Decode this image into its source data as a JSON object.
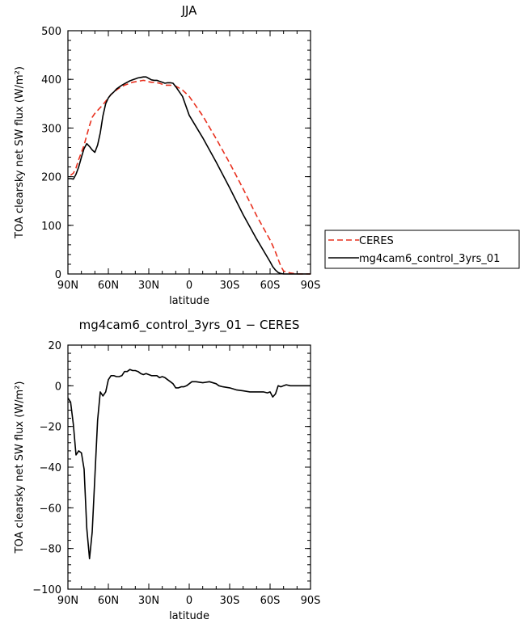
{
  "chart_data": [
    {
      "type": "line",
      "title": "JJA",
      "xlabel": "latitude",
      "ylabel": "TOA clearsky net SW flux (W/m²)",
      "xlim": [
        90,
        -90
      ],
      "ylim": [
        0,
        500
      ],
      "x_ticks": [
        90,
        60,
        30,
        0,
        -30,
        -60,
        -90
      ],
      "x_tick_labels": [
        "90N",
        "60N",
        "30N",
        "0",
        "30S",
        "60S",
        "90S"
      ],
      "y_ticks": [
        0,
        100,
        200,
        300,
        400,
        500
      ],
      "y_tick_labels": [
        "0",
        "100",
        "200",
        "300",
        "400",
        "500"
      ],
      "grid": false,
      "legend_position": "outside-right",
      "series": [
        {
          "name": "CERES",
          "color": "#e8301e",
          "dash": "dashed",
          "x": [
            88,
            86,
            84,
            82,
            80,
            78,
            76,
            74,
            72,
            70,
            68,
            66,
            64,
            62,
            60,
            58,
            56,
            54,
            52,
            50,
            48,
            46,
            44,
            42,
            40,
            38,
            36,
            34,
            32,
            30,
            28,
            26,
            24,
            22,
            20,
            18,
            16,
            14,
            12,
            10,
            5,
            0,
            -10,
            -20,
            -30,
            -40,
            -50,
            -60,
            -62,
            -64,
            -66,
            -68,
            -70,
            -75,
            -80,
            -90
          ],
          "y": [
            203,
            207,
            218,
            235,
            250,
            265,
            285,
            305,
            322,
            330,
            336,
            342,
            348,
            355,
            362,
            369,
            374,
            378,
            382,
            385,
            388,
            390,
            392,
            394,
            395,
            396,
            397,
            398,
            397,
            395,
            394,
            394,
            393,
            392,
            390,
            388,
            388,
            388,
            387,
            386,
            378,
            365,
            325,
            278,
            228,
            175,
            120,
            70,
            58,
            45,
            30,
            16,
            6,
            2,
            0,
            0
          ]
        },
        {
          "name": "mg4cam6_control_3yrs_01",
          "color": "#000000",
          "dash": "solid",
          "x": [
            90,
            88,
            86,
            84,
            82,
            80,
            78,
            76,
            74,
            72,
            70,
            68,
            66,
            64,
            62,
            60,
            58,
            56,
            54,
            52,
            50,
            48,
            46,
            44,
            42,
            40,
            38,
            36,
            34,
            32,
            30,
            28,
            26,
            24,
            22,
            20,
            18,
            16,
            14,
            12,
            10,
            5,
            0,
            -10,
            -20,
            -30,
            -40,
            -50,
            -60,
            -62,
            -64,
            -66,
            -68,
            -70,
            -75,
            -80,
            -90
          ],
          "y": [
            196,
            196,
            195,
            205,
            220,
            240,
            258,
            268,
            262,
            255,
            250,
            265,
            290,
            325,
            350,
            362,
            369,
            374,
            380,
            384,
            388,
            391,
            394,
            397,
            399,
            401,
            403,
            404,
            405,
            405,
            402,
            399,
            398,
            398,
            396,
            394,
            392,
            393,
            393,
            392,
            385,
            365,
            326,
            280,
            230,
            177,
            122,
            72,
            25,
            15,
            8,
            3,
            1,
            0,
            0,
            0,
            0
          ]
        }
      ]
    },
    {
      "type": "line",
      "title": "mg4cam6_control_3yrs_01 − CERES",
      "xlabel": "latitude",
      "ylabel": "TOA clearsky net SW flux (W/m²)",
      "xlim": [
        90,
        -90
      ],
      "ylim": [
        -100,
        20
      ],
      "x_ticks": [
        90,
        60,
        30,
        0,
        -30,
        -60,
        -90
      ],
      "x_tick_labels": [
        "90N",
        "60N",
        "30N",
        "0",
        "30S",
        "60S",
        "90S"
      ],
      "y_ticks": [
        -100,
        -80,
        -60,
        -40,
        -20,
        0,
        20
      ],
      "y_tick_labels": [
        "−100",
        "−80",
        "−60",
        "−40",
        "−20",
        "0",
        "20"
      ],
      "grid": false,
      "series": [
        {
          "color": "#000000",
          "dash": "solid",
          "x": [
            90,
            88,
            86,
            84,
            82,
            80,
            78,
            76,
            74,
            72,
            70,
            68,
            66,
            64,
            62,
            60,
            58,
            56,
            54,
            52,
            50,
            48,
            46,
            44,
            42,
            40,
            38,
            36,
            34,
            32,
            30,
            28,
            26,
            24,
            22,
            20,
            18,
            16,
            14,
            12,
            10,
            8,
            6,
            4,
            2,
            0,
            -2,
            -5,
            -10,
            -15,
            -20,
            -22,
            -25,
            -30,
            -35,
            -40,
            -45,
            -50,
            -55,
            -58,
            -60,
            -62,
            -64,
            -66,
            -68,
            -70,
            -72,
            -75,
            -80,
            -85,
            -90
          ],
          "y": [
            -6,
            -8,
            -19,
            -34,
            -32,
            -33,
            -41,
            -70,
            -85,
            -72,
            -45,
            -17,
            -3,
            -5,
            -3,
            3,
            5,
            5,
            4.5,
            4.5,
            5,
            7,
            7,
            8,
            7.5,
            7.5,
            7,
            6,
            5.5,
            6,
            5.5,
            5,
            5,
            5,
            4,
            4.5,
            4,
            3,
            2,
            1,
            -1,
            -1,
            -0.5,
            -0.5,
            0,
            1,
            2,
            2,
            1.5,
            2,
            1,
            0,
            -0.5,
            -1,
            -2,
            -2.5,
            -3,
            -3,
            -3,
            -3.5,
            -3,
            -5.5,
            -4,
            0,
            -0.5,
            0,
            0.5,
            0,
            0,
            0,
            0
          ]
        }
      ]
    }
  ]
}
